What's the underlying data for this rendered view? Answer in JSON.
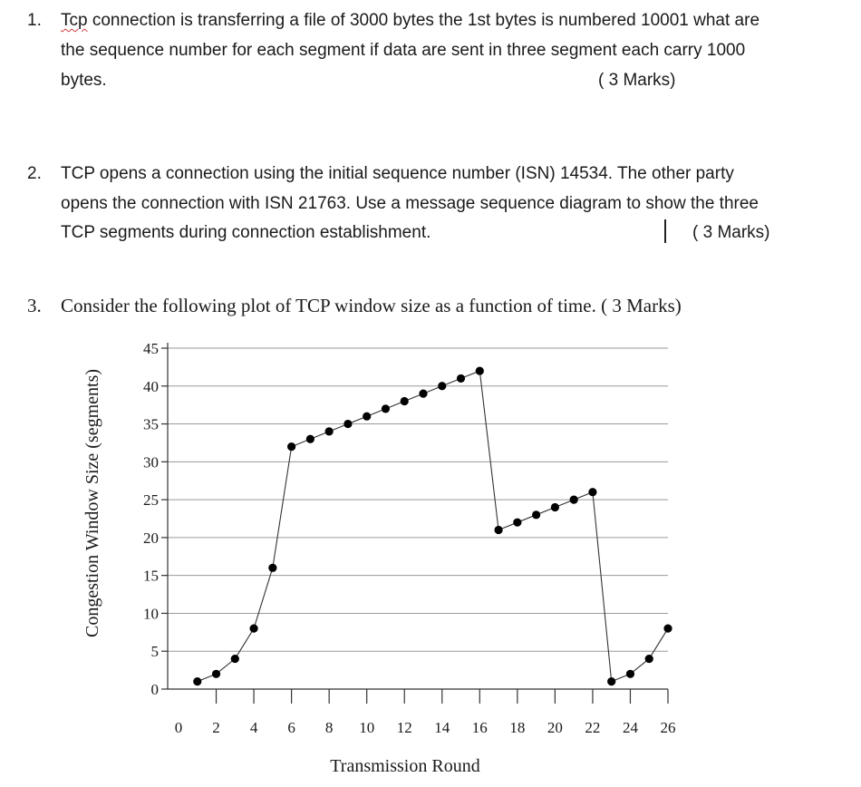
{
  "questions": [
    {
      "number": "1.",
      "first_word": "Tcp",
      "lines": [
        " connection is transferring a file of 3000 bytes the 1st bytes is numbered 10001 what are",
        "the sequence number for each segment if data are sent in three segment each carry 1000",
        "bytes."
      ],
      "marks": "( 3 Marks)"
    },
    {
      "number": "2.",
      "lines": [
        "TCP opens a connection using the initial sequence number (ISN) 14534. The other party",
        "opens the connection with ISN 21763. Use a message sequence diagram to show the three",
        "TCP segments during connection establishment."
      ],
      "marks": "( 3 Marks)"
    },
    {
      "number": "3.",
      "lines": [
        "Consider the following plot of TCP window size as a function of time. ( 3 Marks)"
      ]
    }
  ],
  "chart_data": {
    "type": "line",
    "xlabel": "Transmission Round",
    "ylabel": "Congestion Window Size (segments)",
    "x_ticks": [
      0,
      2,
      4,
      6,
      8,
      10,
      12,
      14,
      16,
      18,
      20,
      22,
      24,
      26
    ],
    "y_ticks": [
      0,
      5,
      10,
      15,
      20,
      25,
      30,
      35,
      40,
      45
    ],
    "xlim": [
      0,
      26
    ],
    "ylim": [
      0,
      45
    ],
    "grid": "horizontal",
    "x": [
      1,
      2,
      3,
      4,
      5,
      6,
      7,
      8,
      9,
      10,
      11,
      12,
      13,
      14,
      15,
      16,
      17,
      18,
      19,
      20,
      21,
      22,
      23,
      24,
      25,
      26
    ],
    "y": [
      1,
      2,
      4,
      8,
      16,
      32,
      33,
      34,
      35,
      36,
      37,
      38,
      39,
      40,
      41,
      42,
      21,
      22,
      23,
      24,
      25,
      26,
      1,
      2,
      4,
      8
    ],
    "line_color": "#333333",
    "marker_color": "#000000"
  }
}
